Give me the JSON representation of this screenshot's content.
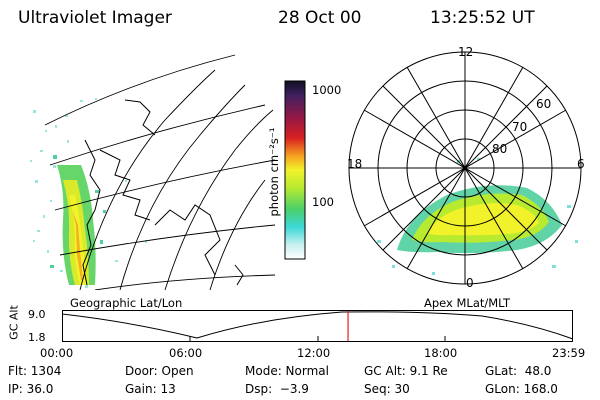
{
  "header": {
    "title": "Ultraviolet Imager",
    "date": "28 Oct 00",
    "time": "13:25:52 UT"
  },
  "panels": {
    "left_caption": "Geographic Lat/Lon",
    "right_caption": "Apex MLat/MLT"
  },
  "colorbar": {
    "label": "photon cm⁻²s⁻¹",
    "tick_top": "1000",
    "tick_mid": "100"
  },
  "polar": {
    "mlt_top": "12",
    "mlt_left": "18",
    "mlt_right": "6",
    "mlt_bottom": "0",
    "lat_60": "60",
    "lat_70": "70",
    "lat_80": "80"
  },
  "altitude": {
    "ylabel": "GC Alt",
    "y_top": "9.0",
    "y_bottom": "1.8",
    "x_ticks": [
      "00:00",
      "06:00",
      "12:00",
      "18:00",
      "23:59"
    ],
    "current_fraction": 0.56
  },
  "footer": {
    "flt": "Flt: 1304",
    "ip": "IP: 36.0",
    "door": "Door: Open",
    "gain": "Gain: 13",
    "mode": "Mode: Normal",
    "dsp": "Dsp:  −3.9",
    "gcalt": "GC Alt: 9.1 Re",
    "seq": "Seq: 30",
    "glat": "GLat:  48.0",
    "glon": "GLon: 168.0"
  },
  "colors": {
    "marker": "#dd2222"
  }
}
